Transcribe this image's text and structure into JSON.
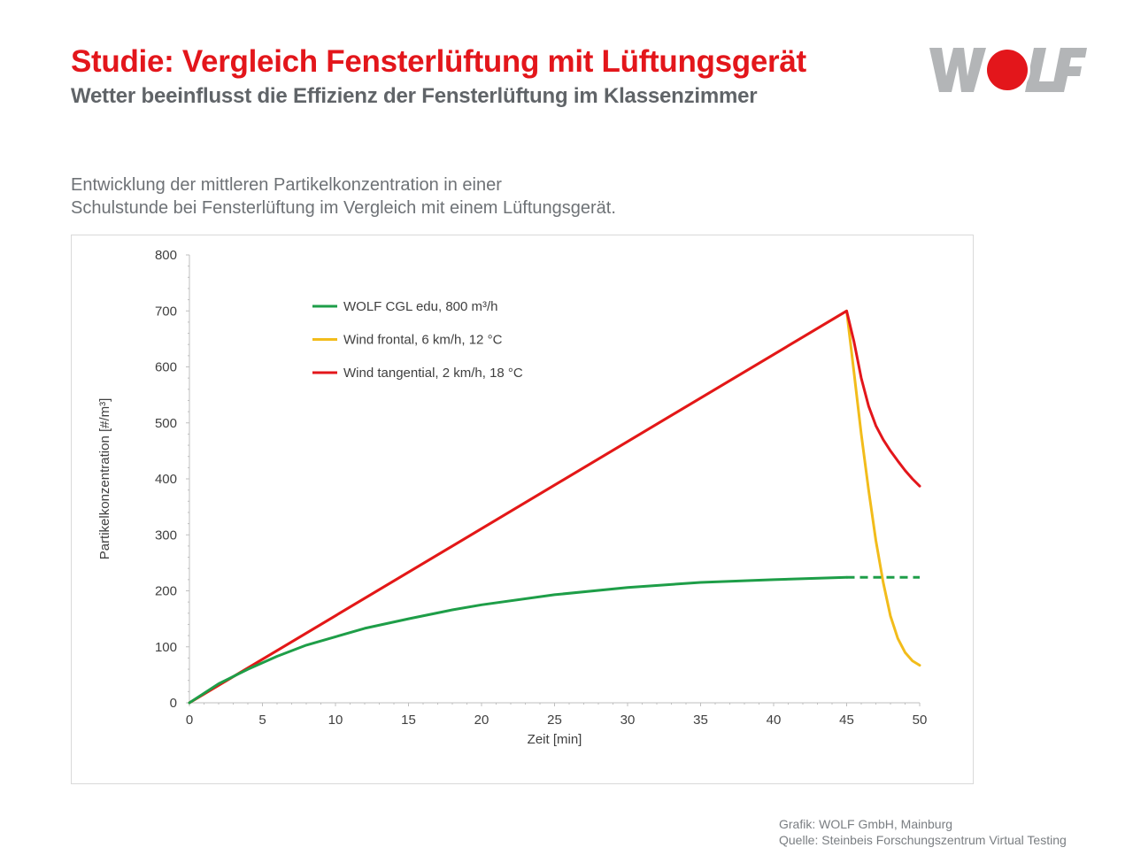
{
  "header": {
    "title": "Studie: Vergleich Fensterlüftung mit Lüftungsgerät",
    "subtitle": "Wetter beeinflusst die Effizienz der Fensterlüftung im Klassenzimmer"
  },
  "logo": {
    "text": "WOLF",
    "brand_red": "#e3161b",
    "brand_grey": "#b3b5b7"
  },
  "intro": {
    "line1": "Entwicklung der mittleren Partikelkonzentration in einer",
    "line2": "Schulstunde bei Fensterlüftung im Vergleich mit einem Lüftungsgerät."
  },
  "chart_data": {
    "type": "line",
    "xlabel": "Zeit [min]",
    "ylabel": "Partikelkonzentration [#/m³]",
    "xlim": [
      0,
      50
    ],
    "ylim": [
      0,
      800
    ],
    "xticks": [
      0,
      5,
      10,
      15,
      20,
      25,
      30,
      35,
      40,
      45,
      50
    ],
    "yticks": [
      0,
      100,
      200,
      300,
      400,
      500,
      600,
      700,
      800
    ],
    "grid": false,
    "legend_position": "top-left",
    "series": [
      {
        "name": "WOLF CGL edu, 800 m³/h",
        "color": "#1e9e48",
        "x": [
          0,
          2,
          4,
          6,
          8,
          10,
          12,
          15,
          18,
          20,
          25,
          30,
          35,
          40,
          45
        ],
        "y": [
          0,
          34,
          60,
          83,
          103,
          118,
          133,
          150,
          166,
          175,
          193,
          206,
          215,
          220,
          224
        ],
        "dashed_continuation": {
          "x": [
            45,
            50
          ],
          "y": [
            224,
            224
          ]
        }
      },
      {
        "name": "Wind frontal, 6 km/h, 12 °C",
        "color": "#f2bc1b",
        "x": [
          0,
          45,
          45.5,
          46,
          46.5,
          47,
          47.5,
          48,
          48.5,
          49,
          49.5,
          50
        ],
        "y": [
          0,
          700,
          590,
          480,
          380,
          290,
          215,
          155,
          115,
          90,
          75,
          67
        ]
      },
      {
        "name": "Wind tangential, 2 km/h, 18 °C",
        "color": "#e3161b",
        "x": [
          0,
          45,
          45.5,
          46,
          46.5,
          47,
          47.5,
          48,
          48.5,
          49,
          49.5,
          50
        ],
        "y": [
          0,
          700,
          645,
          580,
          530,
          495,
          470,
          450,
          432,
          415,
          400,
          387
        ]
      }
    ]
  },
  "credits": {
    "line1": "Grafik: WOLF GmbH, Mainburg",
    "line2": "Quelle: Steinbeis Forschungszentrum Virtual Testing"
  }
}
